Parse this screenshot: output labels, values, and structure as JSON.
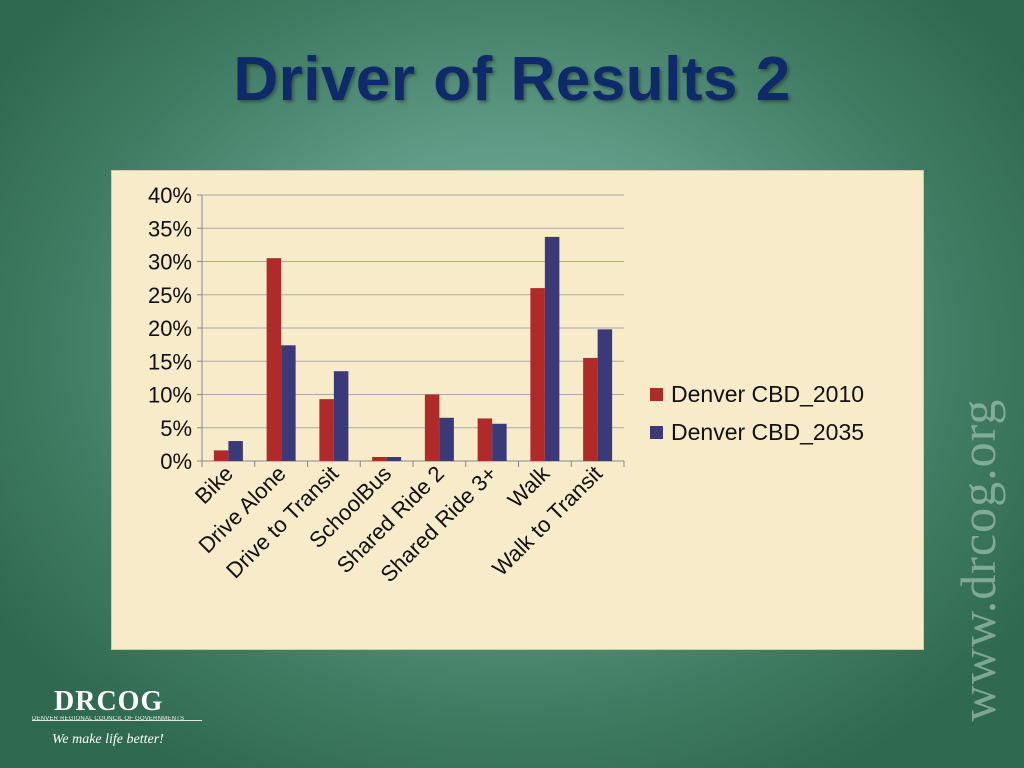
{
  "slide": {
    "title": "Driver of Results 2",
    "watermark": "www.drcog.org"
  },
  "logo": {
    "name": "DRCOG",
    "org_line": "DENVER REGIONAL COUNCIL OF GOVERNMENTS",
    "tagline": "We make life better!"
  },
  "chart_data": {
    "type": "bar",
    "categories": [
      "Bike",
      "Drive Alone",
      "Drive to Transit",
      "SchoolBus",
      "Shared Ride 2",
      "Shared Ride 3+",
      "Walk",
      "Walk to Transit"
    ],
    "series": [
      {
        "name": "Denver CBD_2010",
        "color": "#b12a2a",
        "values": [
          1.6,
          30.5,
          9.3,
          0.6,
          10.0,
          6.4,
          26.0,
          15.5
        ]
      },
      {
        "name": "Denver CBD_2035",
        "color": "#3b3a78",
        "values": [
          3.0,
          17.4,
          13.5,
          0.6,
          6.5,
          5.6,
          33.7,
          19.8
        ]
      }
    ],
    "ylim": [
      0,
      40
    ],
    "yticks": [
      "0%",
      "5%",
      "10%",
      "15%",
      "20%",
      "25%",
      "30%",
      "35%",
      "40%"
    ],
    "grid": true,
    "legend_position": "right",
    "xlabel": "",
    "ylabel": ""
  }
}
